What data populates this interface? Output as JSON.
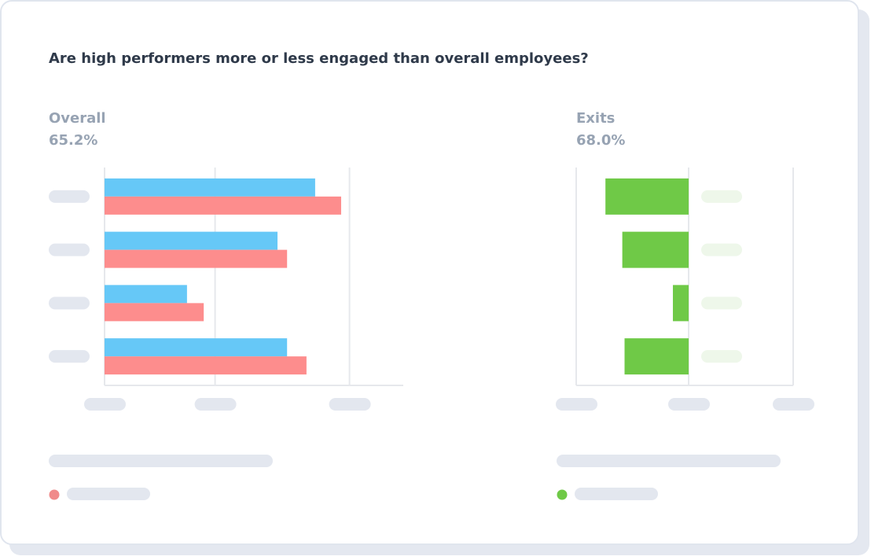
{
  "title": "Are high performers more or less engaged than overall employees?",
  "chart_data": [
    {
      "type": "bar",
      "orientation": "horizontal",
      "title": "Overall",
      "subtitle": "65.2%",
      "categories": [
        null,
        null,
        null,
        null
      ],
      "series": [
        {
          "color": "#66c8f7",
          "values": [
            70.5,
            57.9,
            27.6,
            61.1
          ]
        },
        {
          "color": "#fd8d8d",
          "values": [
            79.2,
            61.1,
            33.2,
            67.6
          ]
        }
      ],
      "xlim": [
        0,
        100
      ],
      "xticks": [
        0,
        37,
        82
      ],
      "grid": true,
      "legend_color": "#f08a8a"
    },
    {
      "type": "bar",
      "orientation": "horizontal",
      "title": "Exits",
      "subtitle": "68.0%",
      "categories": [
        null,
        null,
        null,
        null
      ],
      "series": [
        {
          "color": "#6fc947",
          "values": [
            -74,
            -59,
            -14,
            -57
          ]
        }
      ],
      "xlim": [
        -100,
        93
      ],
      "xticks": [
        -100,
        0,
        93
      ],
      "grid": true,
      "legend_color": "#6fc947"
    }
  ]
}
